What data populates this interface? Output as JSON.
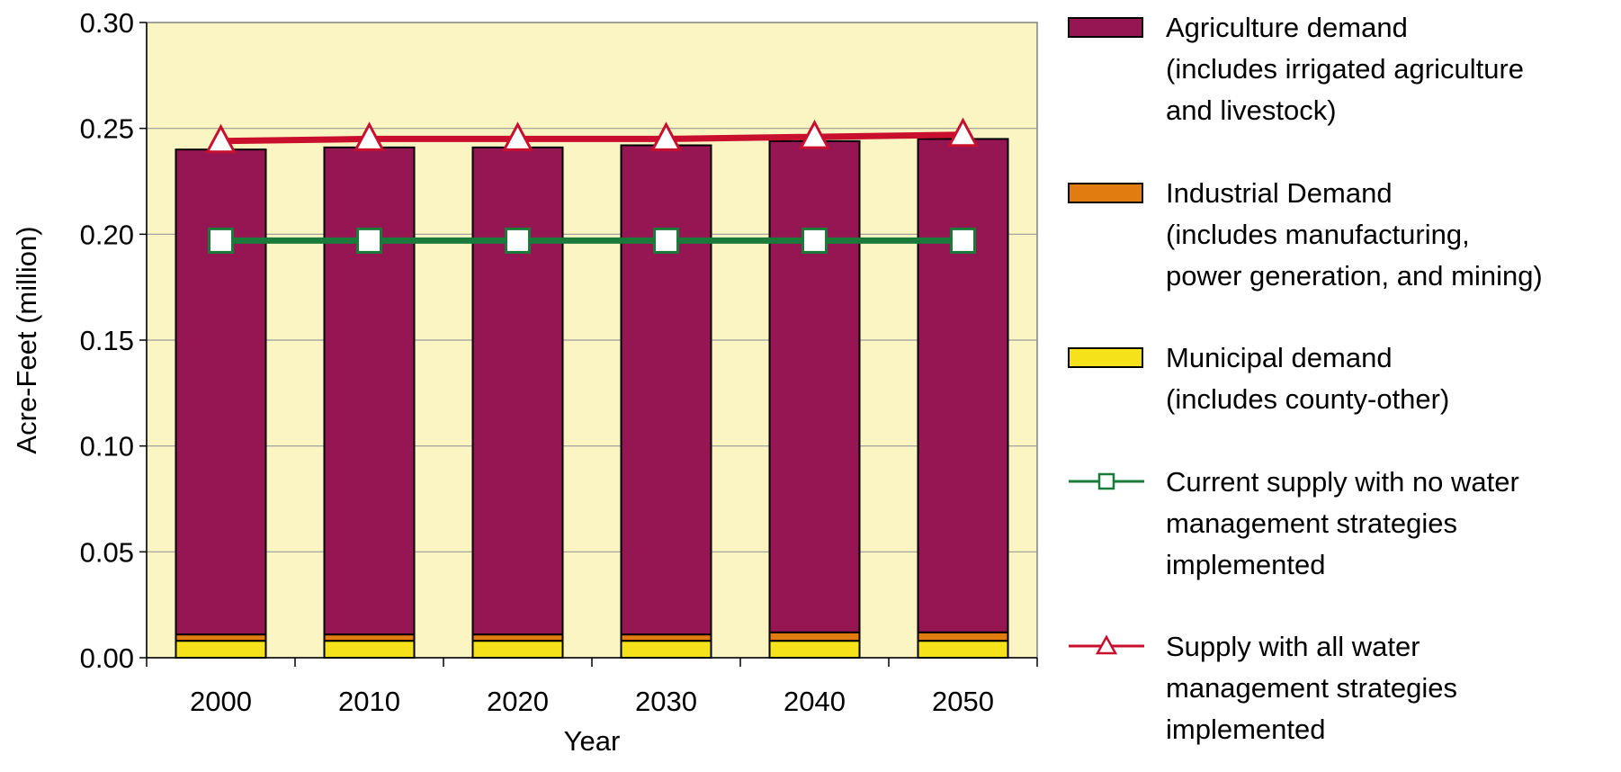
{
  "chart_data": {
    "type": "bar",
    "stacked": true,
    "categories": [
      "2000",
      "2010",
      "2020",
      "2030",
      "2040",
      "2050"
    ],
    "ylabel": "Acre-Feet (million)",
    "xlabel": "Year",
    "ylim": [
      0,
      0.3
    ],
    "yticks": [
      "0.00",
      "0.05",
      "0.10",
      "0.15",
      "0.20",
      "0.25",
      "0.30"
    ],
    "grid": true,
    "legend_position": "right",
    "plot_background": "#FBF5C3",
    "series": [
      {
        "name": "Municipal demand (includes county-other)",
        "name_lines": [
          "Municipal demand",
          "(includes county-other)"
        ],
        "kind": "bar",
        "color": "#F5E21A",
        "values": [
          0.008,
          0.008,
          0.008,
          0.008,
          0.008,
          0.008
        ]
      },
      {
        "name": "Industrial Demand (includes manufacturing, power generation, and mining)",
        "name_lines": [
          "Industrial Demand",
          "(includes manufacturing,",
          "power generation, and mining)"
        ],
        "kind": "bar",
        "color": "#E07C10",
        "values": [
          0.003,
          0.003,
          0.003,
          0.003,
          0.004,
          0.004
        ]
      },
      {
        "name": "Agriculture demand (includes irrigated agriculture and livestock)",
        "name_lines": [
          "Agriculture demand",
          "(includes irrigated agriculture",
          "and livestock)"
        ],
        "kind": "bar",
        "color": "#961654",
        "values": [
          0.229,
          0.23,
          0.23,
          0.231,
          0.232,
          0.233
        ]
      },
      {
        "name": "Current supply with no water management strategies implemented",
        "name_lines": [
          "Current supply with no water",
          "management strategies",
          "implemented"
        ],
        "kind": "line",
        "marker": "square",
        "color": "#1A7A3A",
        "values": [
          0.197,
          0.197,
          0.197,
          0.197,
          0.197,
          0.197
        ]
      },
      {
        "name": "Supply with all water management strategies implemented",
        "name_lines": [
          "Supply with all water",
          "management strategies",
          "implemented"
        ],
        "kind": "line",
        "marker": "triangle",
        "color": "#C8102E",
        "values": [
          0.244,
          0.245,
          0.245,
          0.245,
          0.246,
          0.247
        ]
      }
    ],
    "legend_order": [
      2,
      1,
      0,
      3,
      4
    ]
  }
}
